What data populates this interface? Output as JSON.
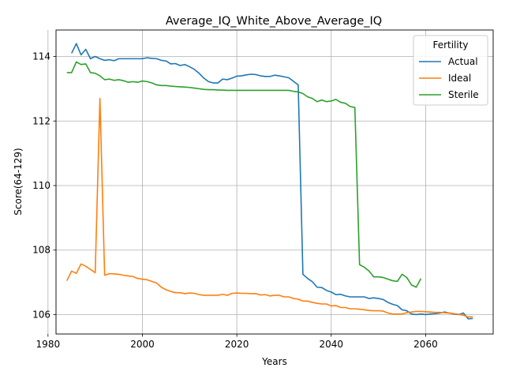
{
  "chart_data": {
    "type": "line",
    "title": "Average_IQ_White_Above_Average_IQ",
    "xlabel": "Years",
    "ylabel": "Score(64-129)",
    "xlim": [
      1981.7,
      2074.3
    ],
    "ylim": [
      105.4,
      114.82
    ],
    "xticks": [
      1980,
      2000,
      2020,
      2040,
      2060
    ],
    "yticks": [
      106,
      108,
      110,
      112,
      114
    ],
    "grid": true,
    "legend": {
      "title": "Fertility",
      "placement": "top-right"
    },
    "series": [
      {
        "name": "Actual",
        "color": "#1f77b4",
        "x": [
          1985,
          1986,
          1987,
          1988,
          1989,
          1990,
          1991,
          1992,
          1993,
          1994,
          1995,
          1996,
          1997,
          1998,
          1999,
          2000,
          2001,
          2002,
          2003,
          2004,
          2005,
          2006,
          2007,
          2008,
          2009,
          2010,
          2011,
          2012,
          2013,
          2014,
          2015,
          2016,
          2017,
          2018,
          2019,
          2020,
          2021,
          2022,
          2023,
          2024,
          2025,
          2026,
          2027,
          2028,
          2029,
          2030,
          2031,
          2032,
          2033,
          2034,
          2035,
          2036,
          2037,
          2038,
          2039,
          2040,
          2041,
          2042,
          2043,
          2044,
          2045,
          2046,
          2047,
          2048,
          2049,
          2050,
          2051,
          2052,
          2053,
          2054,
          2055,
          2056,
          2057,
          2058,
          2059,
          2060,
          2061,
          2062,
          2063,
          2064,
          2065,
          2066,
          2067,
          2068,
          2069,
          2070
        ],
        "y": [
          114.1,
          114.4,
          114.05,
          114.22,
          113.93,
          114.0,
          113.93,
          113.88,
          113.9,
          113.87,
          113.93,
          113.93,
          113.93,
          113.93,
          113.93,
          113.93,
          113.96,
          113.94,
          113.93,
          113.88,
          113.86,
          113.77,
          113.78,
          113.72,
          113.75,
          113.68,
          113.6,
          113.48,
          113.33,
          113.22,
          113.18,
          113.18,
          113.3,
          113.28,
          113.33,
          113.39,
          113.4,
          113.43,
          113.45,
          113.44,
          113.4,
          113.38,
          113.38,
          113.42,
          113.4,
          113.37,
          113.34,
          113.23,
          113.12,
          107.25,
          107.12,
          107.02,
          106.85,
          106.84,
          106.75,
          106.7,
          106.62,
          106.63,
          106.58,
          106.55,
          106.55,
          106.55,
          106.55,
          106.5,
          106.52,
          106.5,
          106.47,
          106.38,
          106.32,
          106.28,
          106.15,
          106.12,
          106.02,
          106.0,
          106.02,
          106.0,
          106.02,
          106.03,
          106.05,
          106.08,
          106.05,
          106.02,
          106.0,
          106.05,
          105.87,
          105.88
        ]
      },
      {
        "name": "Ideal",
        "color": "#ff7f0e",
        "x": [
          1984,
          1985,
          1986,
          1987,
          1988,
          1989,
          1990,
          1991,
          1992,
          1993,
          1994,
          1995,
          1996,
          1997,
          1998,
          1999,
          2000,
          2001,
          2002,
          2003,
          2004,
          2005,
          2006,
          2007,
          2008,
          2009,
          2010,
          2011,
          2012,
          2013,
          2014,
          2015,
          2016,
          2017,
          2018,
          2019,
          2020,
          2021,
          2022,
          2023,
          2024,
          2025,
          2026,
          2027,
          2028,
          2029,
          2030,
          2031,
          2032,
          2033,
          2034,
          2035,
          2036,
          2037,
          2038,
          2039,
          2040,
          2041,
          2042,
          2043,
          2044,
          2045,
          2046,
          2047,
          2048,
          2049,
          2050,
          2051,
          2052,
          2053,
          2054,
          2055,
          2056,
          2057,
          2058,
          2059,
          2060,
          2061,
          2062,
          2063,
          2064,
          2065,
          2066,
          2067,
          2068,
          2069,
          2070
        ],
        "y": [
          107.05,
          107.35,
          107.28,
          107.57,
          107.5,
          107.4,
          107.3,
          112.7,
          107.22,
          107.27,
          107.26,
          107.25,
          107.22,
          107.2,
          107.18,
          107.12,
          107.1,
          107.08,
          107.03,
          106.98,
          106.85,
          106.77,
          106.72,
          106.68,
          106.68,
          106.65,
          106.67,
          106.66,
          106.62,
          106.6,
          106.6,
          106.6,
          106.6,
          106.63,
          106.6,
          106.66,
          106.67,
          106.66,
          106.66,
          106.65,
          106.65,
          106.61,
          106.62,
          106.58,
          106.6,
          106.6,
          106.55,
          106.55,
          106.5,
          106.48,
          106.42,
          106.42,
          106.38,
          106.35,
          106.33,
          106.33,
          106.27,
          106.28,
          106.22,
          106.22,
          106.18,
          106.18,
          106.17,
          106.15,
          106.13,
          106.12,
          106.12,
          106.11,
          106.05,
          106.02,
          106.02,
          106.02,
          106.06,
          106.08,
          106.1,
          106.1,
          106.09,
          106.08,
          106.07,
          106.07,
          106.06,
          106.05,
          106.03,
          106.01,
          105.98,
          105.93,
          105.93
        ]
      },
      {
        "name": "Sterile",
        "color": "#2ca02c",
        "x": [
          1984,
          1985,
          1986,
          1987,
          1988,
          1989,
          1990,
          1991,
          1992,
          1993,
          1994,
          1995,
          1996,
          1997,
          1998,
          1999,
          2000,
          2001,
          2002,
          2003,
          2004,
          2005,
          2006,
          2007,
          2008,
          2009,
          2010,
          2011,
          2012,
          2013,
          2014,
          2015,
          2016,
          2017,
          2018,
          2019,
          2020,
          2021,
          2022,
          2023,
          2024,
          2025,
          2026,
          2027,
          2028,
          2029,
          2030,
          2031,
          2032,
          2033,
          2034,
          2035,
          2036,
          2037,
          2038,
          2039,
          2040,
          2041,
          2042,
          2043,
          2044,
          2045,
          2046,
          2047,
          2048,
          2049,
          2050,
          2051,
          2052,
          2053,
          2054,
          2055,
          2056,
          2057,
          2058,
          2059
        ],
        "y": [
          113.5,
          113.5,
          113.83,
          113.75,
          113.77,
          113.5,
          113.48,
          113.4,
          113.28,
          113.3,
          113.26,
          113.28,
          113.25,
          113.2,
          113.22,
          113.2,
          113.24,
          113.22,
          113.18,
          113.12,
          113.1,
          113.1,
          113.08,
          113.07,
          113.06,
          113.05,
          113.04,
          113.02,
          113.0,
          112.98,
          112.97,
          112.97,
          112.96,
          112.96,
          112.95,
          112.95,
          112.95,
          112.95,
          112.95,
          112.95,
          112.95,
          112.95,
          112.95,
          112.95,
          112.95,
          112.95,
          112.95,
          112.95,
          112.92,
          112.9,
          112.85,
          112.75,
          112.7,
          112.6,
          112.65,
          112.6,
          112.62,
          112.67,
          112.58,
          112.55,
          112.45,
          112.42,
          107.55,
          107.47,
          107.35,
          107.17,
          107.17,
          107.15,
          107.1,
          107.05,
          107.03,
          107.25,
          107.15,
          106.92,
          106.85,
          107.12
        ]
      }
    ]
  }
}
